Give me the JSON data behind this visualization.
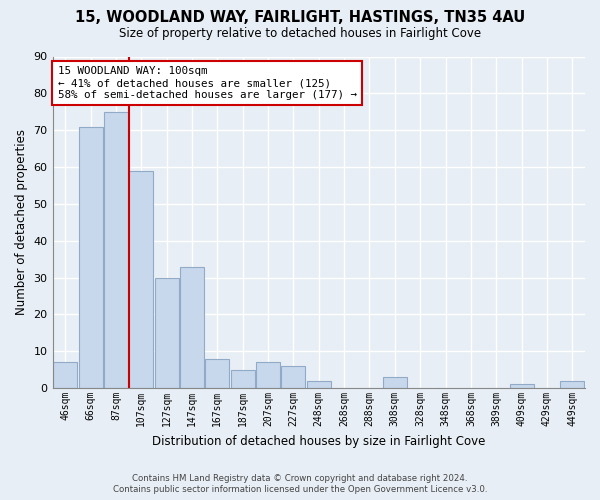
{
  "title": "15, WOODLAND WAY, FAIRLIGHT, HASTINGS, TN35 4AU",
  "subtitle": "Size of property relative to detached houses in Fairlight Cove",
  "xlabel": "Distribution of detached houses by size in Fairlight Cove",
  "ylabel": "Number of detached properties",
  "bar_labels": [
    "46sqm",
    "66sqm",
    "87sqm",
    "107sqm",
    "127sqm",
    "147sqm",
    "167sqm",
    "187sqm",
    "207sqm",
    "227sqm",
    "248sqm",
    "268sqm",
    "288sqm",
    "308sqm",
    "328sqm",
    "348sqm",
    "368sqm",
    "389sqm",
    "409sqm",
    "429sqm",
    "449sqm"
  ],
  "bar_values": [
    7,
    71,
    75,
    59,
    30,
    33,
    8,
    5,
    7,
    6,
    2,
    0,
    0,
    3,
    0,
    0,
    0,
    0,
    1,
    0,
    2
  ],
  "bar_color": "#c8d8ec",
  "bar_edge_color": "#90aac8",
  "annotation_text": "15 WOODLAND WAY: 100sqm\n← 41% of detached houses are smaller (125)\n58% of semi-detached houses are larger (177) →",
  "annotation_box_color": "#ffffff",
  "annotation_box_edge": "#cc0000",
  "vline_color": "#cc0000",
  "vline_x": 2.5,
  "ylim": [
    0,
    90
  ],
  "yticks": [
    0,
    10,
    20,
    30,
    40,
    50,
    60,
    70,
    80,
    90
  ],
  "footer_line1": "Contains HM Land Registry data © Crown copyright and database right 2024.",
  "footer_line2": "Contains public sector information licensed under the Open Government Licence v3.0.",
  "bg_color": "#e8eef5",
  "plot_bg_color": "#e8eef5",
  "grid_color": "#ffffff"
}
